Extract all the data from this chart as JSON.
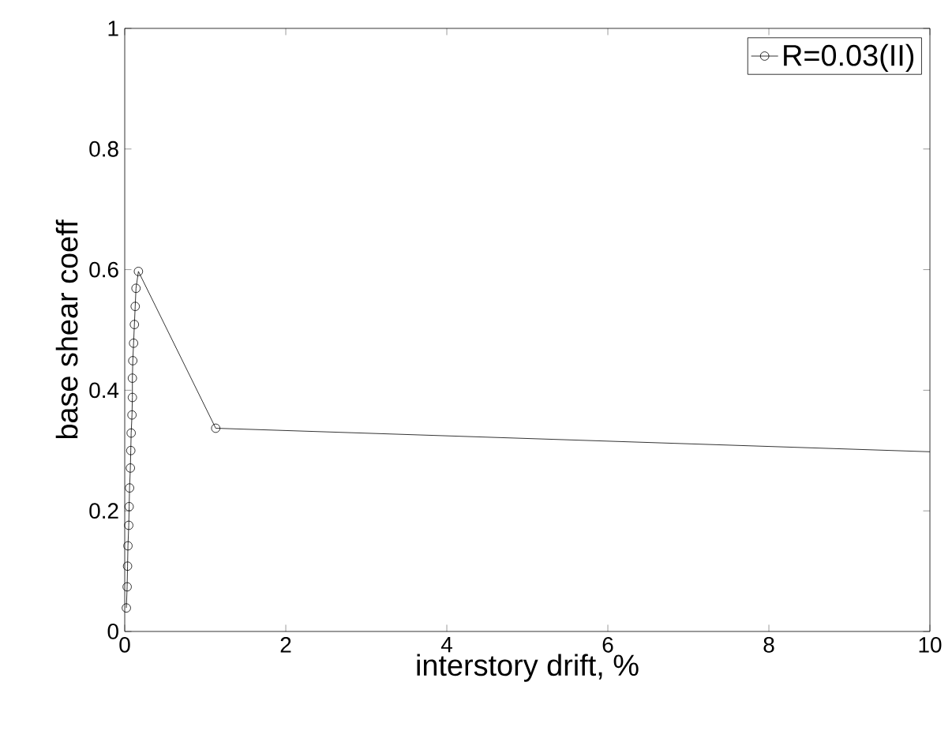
{
  "chart_data": {
    "type": "line",
    "xlabel": "interstory drift, %",
    "ylabel": "base shear coeff",
    "series": [
      {
        "name": "R=0.03(II)",
        "color": "#000000",
        "x": [
          0.02,
          0.03,
          0.035,
          0.04,
          0.05,
          0.055,
          0.06,
          0.07,
          0.075,
          0.08,
          0.09,
          0.095,
          0.095,
          0.1,
          0.11,
          0.12,
          0.13,
          0.14,
          0.17,
          1.13,
          10
        ],
        "values": [
          0.039,
          0.074,
          0.1083,
          0.142,
          0.176,
          0.207,
          0.238,
          0.271,
          0.3,
          0.329,
          0.359,
          0.388,
          0.42,
          0.449,
          0.478,
          0.509,
          0.539,
          0.569,
          0.597,
          0.337,
          0.298
        ]
      }
    ],
    "xlim": [
      0,
      10
    ],
    "ylim": [
      0,
      1
    ],
    "xticks": [
      0,
      2,
      4,
      6,
      8,
      10
    ],
    "yticks": [
      0,
      0.2,
      0.4,
      0.6,
      0.8,
      1
    ],
    "grid": false,
    "legend": "top right",
    "marker": "circle",
    "line_style": "solid"
  }
}
